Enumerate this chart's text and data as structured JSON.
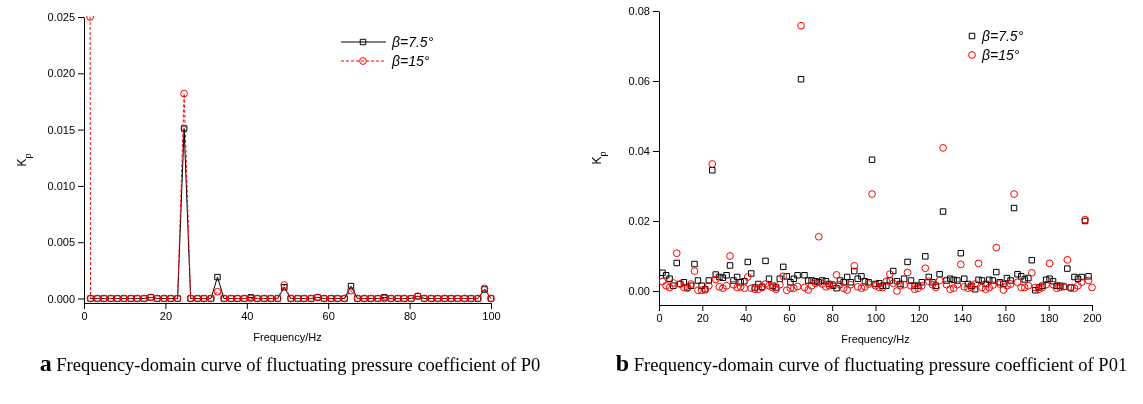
{
  "chart_data": [
    {
      "type": "line",
      "xlabel": "Frequency/Hz",
      "ylabel": "K$_{p}$",
      "xlim": [
        0,
        100
      ],
      "ylim": [
        -0.0004,
        0.025
      ],
      "xticks": [
        0,
        20,
        40,
        60,
        80,
        100
      ],
      "yticks": [
        {
          "value": 0,
          "label": "0.000"
        },
        {
          "value": 0.005,
          "label": "0.005"
        },
        {
          "value": 0.01,
          "label": "0.010"
        },
        {
          "value": 0.015,
          "label": "0.015"
        },
        {
          "value": 0.02,
          "label": "0.020"
        },
        {
          "value": 0.025,
          "label": "0.025"
        }
      ],
      "legend": "top right",
      "grid": false,
      "x": [
        1.5,
        1.6,
        3.3,
        4.9,
        6.6,
        8.2,
        9.8,
        11.5,
        13.1,
        14.8,
        16.4,
        18.0,
        19.7,
        21.3,
        23.0,
        24.6,
        26.2,
        27.9,
        29.5,
        31.2,
        32.8,
        34.4,
        36.1,
        37.7,
        39.4,
        41.0,
        42.6,
        44.3,
        45.9,
        47.6,
        49.2,
        50.8,
        52.5,
        54.1,
        55.8,
        57.4,
        59.0,
        60.7,
        62.3,
        64.0,
        65.6,
        67.2,
        68.9,
        70.5,
        72.2,
        73.8,
        75.4,
        77.1,
        78.7,
        80.4,
        82.0,
        83.6,
        85.3,
        86.9,
        88.6,
        90.2,
        91.8,
        93.5,
        95.1,
        96.8,
        98.4,
        100.0
      ],
      "series": [
        {
          "name": "β=7.5°",
          "color": "#000000",
          "marker": "square",
          "line_style": "solid",
          "values": [
            null,
            0,
            0,
            0,
            0,
            0,
            0,
            0,
            0,
            0,
            0.0001,
            0,
            0,
            0,
            0,
            0.0151,
            0,
            0,
            0,
            0,
            0.0019,
            0,
            0,
            0,
            0,
            0.0001,
            0,
            0,
            0,
            0,
            0.001,
            0,
            0,
            0,
            0,
            0.0001,
            0,
            0,
            0,
            0,
            0.0011,
            0,
            0,
            0,
            0,
            0.0001,
            0,
            0,
            0,
            0,
            0.0002,
            0,
            0,
            0,
            0,
            0,
            0,
            0,
            0,
            0,
            0.0008,
            0
          ]
        },
        {
          "name": "β=15°",
          "color": "#ff0000",
          "marker": "circle",
          "line_style": "dashed",
          "values": [
            0.025,
            0,
            0,
            0,
            0,
            0,
            0,
            0,
            0,
            0,
            0.0001,
            0,
            0,
            0,
            0,
            0.0182,
            0,
            0,
            0,
            0,
            0.0006,
            0,
            0,
            0,
            0,
            0,
            0,
            0,
            0,
            0,
            0.0012,
            0,
            0,
            0,
            0,
            0.0001,
            0,
            0,
            0,
            0,
            0.0007,
            0,
            0,
            0,
            0,
            0,
            0,
            0,
            0,
            0,
            0.0002,
            0,
            0,
            0,
            0,
            0,
            0,
            0,
            0,
            0,
            0.0009,
            0
          ]
        }
      ],
      "annotations": [
        "a Frequency-domain curve of fluctuating pressure coefficient of P0"
      ]
    },
    {
      "type": "scatter",
      "xlabel": "Frequency/Hz",
      "ylabel": "K$_{p}$",
      "xlim": [
        0,
        200
      ],
      "ylim": [
        -0.004,
        0.08
      ],
      "xticks": [
        0,
        20,
        40,
        60,
        80,
        100,
        120,
        140,
        160,
        180,
        200
      ],
      "yticks": [
        {
          "value": 0,
          "label": "0.00"
        },
        {
          "value": 0.02,
          "label": "0.02"
        },
        {
          "value": 0.04,
          "label": "0.04"
        },
        {
          "value": 0.06,
          "label": "0.06"
        },
        {
          "value": 0.08,
          "label": "0.08"
        }
      ],
      "legend": "top right",
      "grid": false,
      "x": [
        1.6,
        3.3,
        4.9,
        6.6,
        8.2,
        9.8,
        11.5,
        13.1,
        14.8,
        16.4,
        18.0,
        19.7,
        21.3,
        23.0,
        24.6,
        26.2,
        27.9,
        29.5,
        31.2,
        32.8,
        34.4,
        36.1,
        37.7,
        39.4,
        41.0,
        42.6,
        44.3,
        45.9,
        47.6,
        49.2,
        50.8,
        52.5,
        54.1,
        55.8,
        57.4,
        59.0,
        60.7,
        62.3,
        64.0,
        65.6,
        67.2,
        68.9,
        70.5,
        72.2,
        73.8,
        75.4,
        77.1,
        78.7,
        80.4,
        82.0,
        83.6,
        85.3,
        86.9,
        88.6,
        90.2,
        91.8,
        93.5,
        95.1,
        96.8,
        98.4,
        100.0,
        101.7,
        103.3,
        105.0,
        106.6,
        108.2,
        109.9,
        111.5,
        113.2,
        114.8,
        116.4,
        118.1,
        119.7,
        121.4,
        123.0,
        124.6,
        126.3,
        127.9,
        129.6,
        131.2,
        132.8,
        134.5,
        136.1,
        137.8,
        139.4,
        141.0,
        142.7,
        144.3,
        146.0,
        147.6,
        149.2,
        150.9,
        152.5,
        154.2,
        155.8,
        157.4,
        159.1,
        160.7,
        162.4,
        164.0,
        165.6,
        167.3,
        168.9,
        170.6,
        172.2,
        173.8,
        175.5,
        177.1,
        178.8,
        180.4,
        182.0,
        183.7,
        185.3,
        187.0,
        188.6,
        190.2,
        191.9,
        193.5,
        195.2,
        196.8,
        198.4,
        200.0
      ],
      "series": [
        {
          "name": "β=7.5°",
          "color": "#000000",
          "marker": "square",
          "values": [
            0.0052,
            0.0045,
            0.0035,
            0.0015,
            0.008,
            0.002,
            0.0025,
            0.001,
            0.0015,
            0.0077,
            0.003,
            0.0015,
            0.0005,
            0.003,
            0.0345,
            0.0047,
            0.004,
            0.0038,
            0.0045,
            0.0073,
            0.003,
            0.004,
            0.0025,
            0.0028,
            0.0083,
            0.005,
            0.001,
            0.002,
            0.0012,
            0.0086,
            0.0035,
            0.0015,
            0.001,
            0.0035,
            0.0069,
            0.0042,
            0.0025,
            0.0035,
            0.0045,
            0.0605,
            0.0045,
            0.003,
            0.003,
            0.0028,
            0.0025,
            0.003,
            0.0028,
            0.002,
            0.0015,
            0.0008,
            0.003,
            0.0025,
            0.004,
            0.0025,
            0.0057,
            0.0035,
            0.0042,
            0.0028,
            0.0025,
            0.0375,
            0.002,
            0.0022,
            0.0015,
            0.0015,
            0.003,
            0.0057,
            0.0028,
            0.002,
            0.0035,
            0.0083,
            0.003,
            0.0015,
            0.0015,
            0.0025,
            0.0099,
            0.004,
            0.0025,
            0.0015,
            0.0048,
            0.0227,
            0.003,
            0.0035,
            0.0032,
            0.003,
            0.0108,
            0.0035,
            0.002,
            0.0015,
            0.0005,
            0.0032,
            0.003,
            0.002,
            0.0032,
            0.003,
            0.0054,
            0.0025,
            0.002,
            0.0037,
            0.003,
            0.0237,
            0.0048,
            0.0042,
            0.0033,
            0.0037,
            0.0088,
            0.0002,
            0.001,
            0.0015,
            0.0032,
            0.0035,
            0.0028,
            0.0015,
            0.0015,
            0.0012,
            0.0064,
            0.001,
            0.004,
            0.0035,
            0.004,
            0.02,
            0.0042,
            null
          ]
        },
        {
          "name": "β=15°",
          "color": "#ff0000",
          "marker": "circle",
          "values": [
            0.0027,
            0.0015,
            0.001,
            0.0023,
            0.0108,
            0.002,
            0.001,
            0.0008,
            0.002,
            0.0057,
            0.0002,
            0.0002,
            0.0003,
            0.0015,
            0.0363,
            0.0033,
            0.0012,
            0.0008,
            0.0015,
            0.01,
            0.0018,
            0.001,
            0.0012,
            0.0008,
            0.004,
            0.0008,
            0.0005,
            0.0005,
            0.001,
            0.002,
            0.0015,
            0.001,
            0.0005,
            0.0018,
            0.0042,
            0.0002,
            0.0008,
            0.0008,
            0.0013,
            0.0758,
            0.001,
            0.0003,
            0.0015,
            0.0022,
            0.0155,
            0.002,
            0.0012,
            0.0015,
            0.0018,
            0.0046,
            0.0018,
            0.0008,
            0.0003,
            0.0018,
            0.0072,
            0.0012,
            0.0008,
            0.0012,
            0.002,
            0.0277,
            0.0015,
            0.001,
            0.001,
            0.0028,
            0.0048,
            0.0022,
            0.0,
            0.0015,
            0.0018,
            0.0053,
            0.0015,
            0.0005,
            0.0008,
            0.0015,
            0.0065,
            0.0028,
            0.0018,
            0.001,
            0.003,
            0.0409,
            0.0018,
            0.0005,
            0.0008,
            0.0018,
            0.0076,
            0.0012,
            0.0008,
            0.001,
            0.002,
            0.0079,
            0.001,
            0.0005,
            0.001,
            0.0017,
            0.0124,
            0.002,
            0.0003,
            0.0015,
            0.002,
            0.0277,
            0.0025,
            0.001,
            0.001,
            0.0015,
            0.0052,
            0.001,
            0.0005,
            0.001,
            0.0018,
            0.0079,
            0.0018,
            0.0008,
            0.001,
            0.0013,
            0.0089,
            0.0008,
            0.0008,
            0.0015,
            0.0025,
            0.0204,
            0.003,
            0.001
          ]
        }
      ],
      "annotations": [
        "b Frequency-domain curve of fluctuating pressure coefficient of P01"
      ]
    }
  ]
}
